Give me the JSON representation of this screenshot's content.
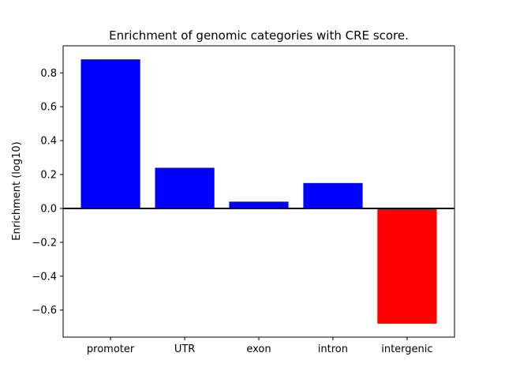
{
  "figure": {
    "background": "#ffffff"
  },
  "chart_data": {
    "type": "bar",
    "title": "Enrichment of genomic categories with CRE score.",
    "xlabel": "",
    "ylabel": "Enrichment (log10)",
    "categories": [
      "promoter",
      "UTR",
      "exon",
      "intron",
      "intergenic"
    ],
    "values": [
      0.88,
      0.24,
      0.04,
      0.15,
      -0.68
    ],
    "bar_colors": [
      "#0000ff",
      "#0000ff",
      "#0000ff",
      "#0000ff",
      "#ff0000"
    ],
    "bar_width": 0.8,
    "ylim": [
      -0.76,
      0.96
    ],
    "xlim": [
      -0.64,
      4.64
    ],
    "yticks": [
      -0.6,
      -0.4,
      -0.2,
      0.0,
      0.2,
      0.4,
      0.6,
      0.8
    ],
    "ytick_labels": [
      "−0.6",
      "−0.4",
      "−0.2",
      "0.0",
      "0.2",
      "0.4",
      "0.6",
      "0.8"
    ],
    "zero_line": true,
    "grid": false,
    "legend": null
  },
  "colors": {
    "positive": "#0000ff",
    "negative": "#ff0000",
    "axis": "#000000",
    "background": "#ffffff"
  }
}
